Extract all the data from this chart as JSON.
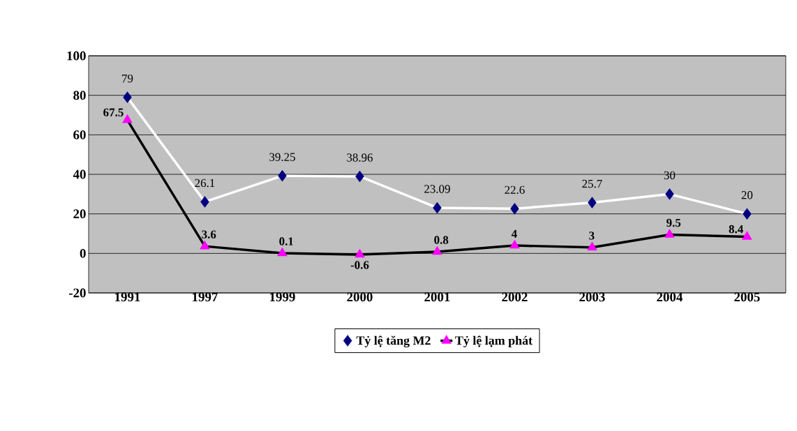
{
  "chart_data": {
    "type": "line",
    "categories": [
      "1991",
      "1997",
      "1999",
      "2000",
      "2001",
      "2002",
      "2003",
      "2004",
      "2005"
    ],
    "series": [
      {
        "name": "Tỷ lệ tăng M2",
        "color": "#000080",
        "marker": "diamond",
        "values": [
          79,
          26.1,
          39.25,
          38.96,
          23.09,
          22.6,
          25.7,
          30,
          20
        ]
      },
      {
        "name": "Tỷ lệ lạm phát",
        "color": "#ff00ff",
        "marker": "triangle",
        "values": [
          67.5,
          3.6,
          0.1,
          -0.6,
          0.8,
          4,
          3,
          9.5,
          8.4
        ]
      }
    ],
    "ylim": [
      -20,
      100
    ],
    "yticks": [
      -20,
      0,
      20,
      40,
      60,
      80,
      100
    ],
    "grid": "y",
    "legend": "bottom",
    "data_labels": true
  }
}
